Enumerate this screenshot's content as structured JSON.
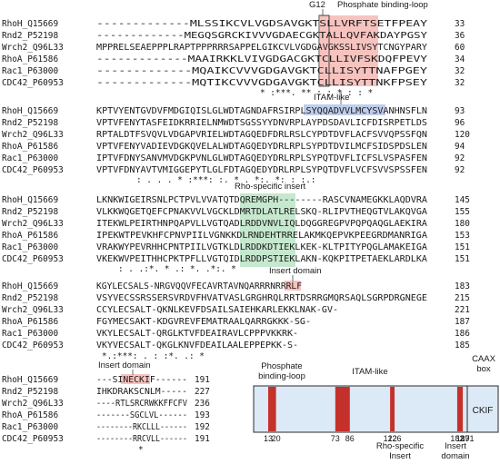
{
  "labels": {
    "g12": "G12",
    "phosphate_top": "Phosphate binding-loop",
    "itam": "ITAM-like",
    "rho_insert": "Rho-specific insert",
    "insert_domain_1": "Insert domain",
    "insert_domain_2": "Insert domain"
  },
  "blocks": [
    {
      "rows": [
        {
          "name": "RhoH_Q15669",
          "seq": "-------------MLSSIKCVLVGDSAVGKTSLLVRFTSETFPEAY",
          "num": "33"
        },
        {
          "name": "Rnd2_P52198",
          "seq": "-------------MEGQSGRCKIVVVGDAECGKTALLQVFAKDAYPGSY",
          "num": "36"
        },
        {
          "name": "Wrch2_Q96L33",
          "seq": "MPPRELSEAEPPPLRAPTPPPRRRSAPPELGIKCVLVGDGAVGKSSLIVSYTCNGYPARY",
          "num": "60"
        },
        {
          "name": "RhoA_P61586",
          "seq": "-------------MAAIRKKLVIVGDGACGKTCLLIVFSKDQFPEVY",
          "num": "34"
        },
        {
          "name": "Rac1_P63000",
          "seq": "-------------MQAIKCVVVGDGAVGKTCLLISYTTNAFPGEY",
          "num": "32"
        },
        {
          "name": "CDC42_P60953",
          "seq": "-------------MQTIKCVVVGDGAVGKTCLLISYTTNKFPSEY",
          "num": "32"
        }
      ],
      "cons": "* :***.  ** : : *  :  :  *"
    },
    {
      "rows": [
        {
          "name": "RhoH_Q15669",
          "seq": "KPTVYENTGVDVFMDGIQISLGLWDTAGNDAFRSIRPLSYQQADVVLMCYSVANHNSFLN",
          "num": "93"
        },
        {
          "name": "Rnd2_P52198",
          "seq": "VPTVFENYTASFEIDKRRIELNMWDTSGSSYYDNVRPLAYPDSDAVLICFDISRPETLDS",
          "num": "96"
        },
        {
          "name": "Wrch2_Q96L33",
          "seq": "RPTALDTFSVQVLVDGAPVRIELWDTAGQEDFDRLRSLCYPDTDVFLACFSVVQPSSFQN",
          "num": "120"
        },
        {
          "name": "RhoA_P61586",
          "seq": "VPTVFENYVADIEVDGKQVELALWDTAGQEDYDRLRPLSYPDTDVILMCFSIDSPDSLEN",
          "num": "94"
        },
        {
          "name": "Rac1_P63000",
          "seq": "IPTVFDNYSANVMVDGKPVNLGLWDTAGQEDYDRLRPLSYPQTDVFLICFSLVSPASFEN",
          "num": "92"
        },
        {
          "name": "CDC42_P60953",
          "seq": "VPTVFDNYAVTVMIGGEPYTLGLFDTAGQEDYDRLRPLSYPQTDVFLVCFSVVSPSSFEN",
          "num": "92"
        }
      ],
      "cons": ":   .    .      .  *  :***:  :. *  . *:. *: :   :.:"
    },
    {
      "rows": [
        {
          "name": "RhoH_Q15669",
          "seq": "LKNKWIGEIRSNLPCTPVLVVATQTDQREMGPH--------RASCVNAMEGKKLAQDVRA",
          "num": "145"
        },
        {
          "name": "Rnd2_P52198",
          "seq": "VLKKWQGETQEFCPNAKVVLVGCKLDMRTDLATLRELSKQ-RLIPVTHEQGTVLAKQVGA",
          "num": "155"
        },
        {
          "name": "Wrch2_Q96L33",
          "seq": "ITEKWLPEIRTHNPQAPVLLVGTQADLRDDVNVLIQLDQGGREGPVPQPQAQGLAEKIRA",
          "num": "180"
        },
        {
          "name": "RhoA_P61586",
          "seq": "IPEKWTPEVKHFCPNVPIILVGNKKDLRNDEHTRRELAKMKQEPVKPEEGRDMANRIGA",
          "num": "153"
        },
        {
          "name": "Rac1_P63000",
          "seq": "VRAKWYPEVRHHCPNTPIILVGTKLDLRDDKDTIEKLKEK-KLTPITYPQGLAMAKEIGA",
          "num": "151"
        },
        {
          "name": "CDC42_P60953",
          "seq": "VKEKWVPEITHHCPKTPFLLVGTQIDLRDDPSTIEKLAKN-KQKPITPETAEKLARDLKA",
          "num": "151"
        }
      ],
      "cons": "   :   .   .:*.  *  .:     *.   .*:.  *"
    },
    {
      "rows": [
        {
          "name": "RhoH_Q15669",
          "seq": "KGYLECSALS-NRGVQQVFECAVRTAVNQARRRNRRRLF",
          "num": "183"
        },
        {
          "name": "Rnd2_P52198",
          "seq": "VSYVECSSRSSERSVRDVFHVATVASLGRGHRQLRRTDSRRGMQRSAQLSGRPDRGNEGE",
          "num": "215"
        },
        {
          "name": "Wrch2_Q96L33",
          "seq": "CCYLECSALT-QKNLKEVFDSAILSAIEHKARLEKKLNAK-GV-",
          "num": "221"
        },
        {
          "name": "RhoA_P61586",
          "seq": "FGYMECSAKT-KDGVREVFEMATRAALQARRGKKK-SG-",
          "num": "187"
        },
        {
          "name": "Rac1_P63000",
          "seq": "VKYLECSALT-QRGLKTVFDEAIRAVLCPPPVKKRK-",
          "num": "186"
        },
        {
          "name": "CDC42_P60953",
          "seq": "VKYVECSALT-QKGLKNVFDEAILAALEPPEPKK-S-",
          "num": "185"
        }
      ],
      "cons": "*.:***: .  :    :*. .:  *"
    },
    {
      "rows": [
        {
          "name": "RhoH_Q15669",
          "seq": "---SINECKIF------",
          "num": "191"
        },
        {
          "name": "Rnd2_P52198",
          "seq": "IHKDRAKSCNLM-----",
          "num": "227"
        },
        {
          "name": "Wrch2_Q96L33",
          "seq": "----RTLSRCRWKKFFCFV",
          "num": "236"
        },
        {
          "name": "RhoA_P61586",
          "seq": "-------SGCLVL------",
          "num": "193"
        },
        {
          "name": "Rac1_P63000",
          "seq": "--------RKCLLL------",
          "num": "192"
        },
        {
          "name": "CDC42_P60953",
          "seq": "--------RRCVLL------",
          "num": "191"
        }
      ],
      "cons": "*"
    }
  ],
  "domain_map": {
    "protein_length": 191,
    "title_labels": {
      "phosphate": "Phosphate binding-loop",
      "itam": "ITAM-like",
      "caax": "CAAX box",
      "rho_insert": "Rho-specific Insert",
      "insert_domain": "Insert domain"
    },
    "caax_text": "CKIF",
    "regions": [
      {
        "start": 13,
        "end": 20
      },
      {
        "start": 73,
        "end": 86
      },
      {
        "start": 122,
        "end": 126
      },
      {
        "start": 182,
        "end": 187
      }
    ],
    "ticks": [
      "13",
      "20",
      "73",
      "86",
      "122",
      "126",
      "182",
      "187",
      "191"
    ],
    "tick_values": [
      13,
      20,
      73,
      86,
      122,
      126,
      182,
      187,
      191
    ],
    "colors": {
      "domain": "#c4312b",
      "body": "#dce9f6",
      "caax": "#dce9f6",
      "outline": "#2b2b2b"
    }
  }
}
